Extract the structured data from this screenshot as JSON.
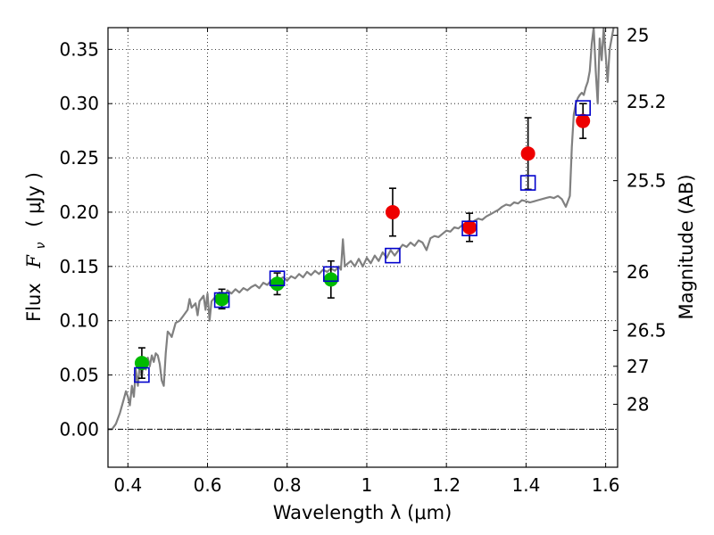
{
  "chart_data": {
    "type": "scatter",
    "xlabel": "Wavelength  λ (μm)",
    "ylabel_text": "Flux",
    "ylabel_symbol": "F",
    "ylabel_subscript": "ν",
    "ylabel_unit": "( μJy )",
    "y2label": "Magnitude (AB)",
    "xlim": [
      0.35,
      1.63
    ],
    "ylim": [
      -0.035,
      0.37
    ],
    "grid": true,
    "x_ticks": [
      0.4,
      0.6,
      0.8,
      1.0,
      1.2,
      1.4,
      1.6
    ],
    "x_tick_labels": [
      "0.4",
      "0.6",
      "0.8",
      "1",
      "1.2",
      "1.4",
      "1.6"
    ],
    "y_ticks": [
      0.0,
      0.05,
      0.1,
      0.15,
      0.2,
      0.25,
      0.3,
      0.35
    ],
    "y_tick_labels": [
      "0.00",
      "0.05",
      "0.10",
      "0.15",
      "0.20",
      "0.25",
      "0.30",
      "0.35"
    ],
    "y2_ticks": [
      {
        "label": "25",
        "flux": 0.363
      },
      {
        "label": "25.2",
        "flux": 0.302
      },
      {
        "label": "25.5",
        "flux": 0.229
      },
      {
        "label": "26",
        "flux": 0.145
      },
      {
        "label": "26.5",
        "flux": 0.091
      },
      {
        "label": "27",
        "flux": 0.058
      },
      {
        "label": "28",
        "flux": 0.023
      }
    ],
    "colors": {
      "spectrum": "#808080",
      "green_points": "#00bb00",
      "red_points": "#ee0000",
      "model_squares": "#0000cc",
      "error_bars": "#000000",
      "zero_line": "#000000"
    },
    "spectrum": [
      [
        0.35,
        0.0
      ],
      [
        0.36,
        0.0
      ],
      [
        0.37,
        0.005
      ],
      [
        0.38,
        0.015
      ],
      [
        0.39,
        0.028
      ],
      [
        0.395,
        0.035
      ],
      [
        0.4,
        0.03
      ],
      [
        0.405,
        0.022
      ],
      [
        0.41,
        0.04
      ],
      [
        0.415,
        0.03
      ],
      [
        0.42,
        0.055
      ],
      [
        0.425,
        0.04
      ],
      [
        0.43,
        0.06
      ],
      [
        0.435,
        0.048
      ],
      [
        0.44,
        0.064
      ],
      [
        0.445,
        0.055
      ],
      [
        0.45,
        0.066
      ],
      [
        0.455,
        0.058
      ],
      [
        0.46,
        0.068
      ],
      [
        0.465,
        0.062
      ],
      [
        0.47,
        0.07
      ],
      [
        0.475,
        0.068
      ],
      [
        0.48,
        0.06
      ],
      [
        0.485,
        0.045
      ],
      [
        0.49,
        0.04
      ],
      [
        0.495,
        0.07
      ],
      [
        0.5,
        0.09
      ],
      [
        0.505,
        0.088
      ],
      [
        0.51,
        0.085
      ],
      [
        0.52,
        0.098
      ],
      [
        0.53,
        0.1
      ],
      [
        0.54,
        0.105
      ],
      [
        0.55,
        0.11
      ],
      [
        0.555,
        0.12
      ],
      [
        0.56,
        0.112
      ],
      [
        0.57,
        0.116
      ],
      [
        0.575,
        0.105
      ],
      [
        0.58,
        0.118
      ],
      [
        0.59,
        0.123
      ],
      [
        0.595,
        0.11
      ],
      [
        0.6,
        0.125
      ],
      [
        0.605,
        0.1
      ],
      [
        0.61,
        0.118
      ],
      [
        0.62,
        0.122
      ],
      [
        0.63,
        0.126
      ],
      [
        0.64,
        0.118
      ],
      [
        0.65,
        0.128
      ],
      [
        0.66,
        0.125
      ],
      [
        0.67,
        0.129
      ],
      [
        0.68,
        0.126
      ],
      [
        0.69,
        0.13
      ],
      [
        0.7,
        0.128
      ],
      [
        0.71,
        0.131
      ],
      [
        0.72,
        0.133
      ],
      [
        0.73,
        0.13
      ],
      [
        0.74,
        0.135
      ],
      [
        0.75,
        0.133
      ],
      [
        0.76,
        0.137
      ],
      [
        0.77,
        0.135
      ],
      [
        0.78,
        0.138
      ],
      [
        0.79,
        0.14
      ],
      [
        0.8,
        0.137
      ],
      [
        0.81,
        0.141
      ],
      [
        0.82,
        0.139
      ],
      [
        0.83,
        0.143
      ],
      [
        0.84,
        0.14
      ],
      [
        0.85,
        0.145
      ],
      [
        0.86,
        0.142
      ],
      [
        0.87,
        0.146
      ],
      [
        0.88,
        0.143
      ],
      [
        0.89,
        0.147
      ],
      [
        0.9,
        0.145
      ],
      [
        0.91,
        0.148
      ],
      [
        0.92,
        0.146
      ],
      [
        0.93,
        0.15
      ],
      [
        0.935,
        0.147
      ],
      [
        0.94,
        0.175
      ],
      [
        0.945,
        0.15
      ],
      [
        0.95,
        0.152
      ],
      [
        0.96,
        0.155
      ],
      [
        0.97,
        0.15
      ],
      [
        0.98,
        0.157
      ],
      [
        0.99,
        0.15
      ],
      [
        1.0,
        0.158
      ],
      [
        1.01,
        0.153
      ],
      [
        1.02,
        0.16
      ],
      [
        1.03,
        0.155
      ],
      [
        1.04,
        0.163
      ],
      [
        1.05,
        0.158
      ],
      [
        1.06,
        0.165
      ],
      [
        1.07,
        0.16
      ],
      [
        1.08,
        0.165
      ],
      [
        1.09,
        0.17
      ],
      [
        1.1,
        0.168
      ],
      [
        1.11,
        0.172
      ],
      [
        1.12,
        0.169
      ],
      [
        1.13,
        0.174
      ],
      [
        1.14,
        0.172
      ],
      [
        1.15,
        0.165
      ],
      [
        1.16,
        0.176
      ],
      [
        1.17,
        0.178
      ],
      [
        1.18,
        0.177
      ],
      [
        1.19,
        0.18
      ],
      [
        1.2,
        0.183
      ],
      [
        1.21,
        0.182
      ],
      [
        1.22,
        0.186
      ],
      [
        1.23,
        0.185
      ],
      [
        1.24,
        0.188
      ],
      [
        1.25,
        0.19
      ],
      [
        1.26,
        0.189
      ],
      [
        1.27,
        0.192
      ],
      [
        1.28,
        0.194
      ],
      [
        1.29,
        0.193
      ],
      [
        1.3,
        0.196
      ],
      [
        1.31,
        0.198
      ],
      [
        1.32,
        0.2
      ],
      [
        1.33,
        0.202
      ],
      [
        1.34,
        0.205
      ],
      [
        1.35,
        0.207
      ],
      [
        1.36,
        0.206
      ],
      [
        1.37,
        0.209
      ],
      [
        1.38,
        0.208
      ],
      [
        1.39,
        0.211
      ],
      [
        1.4,
        0.21
      ],
      [
        1.41,
        0.209
      ],
      [
        1.42,
        0.21
      ],
      [
        1.43,
        0.211
      ],
      [
        1.44,
        0.212
      ],
      [
        1.45,
        0.213
      ],
      [
        1.46,
        0.214
      ],
      [
        1.47,
        0.213
      ],
      [
        1.48,
        0.215
      ],
      [
        1.49,
        0.212
      ],
      [
        1.5,
        0.205
      ],
      [
        1.51,
        0.215
      ],
      [
        1.515,
        0.26
      ],
      [
        1.52,
        0.29
      ],
      [
        1.525,
        0.3
      ],
      [
        1.53,
        0.305
      ],
      [
        1.535,
        0.308
      ],
      [
        1.54,
        0.31
      ],
      [
        1.545,
        0.308
      ],
      [
        1.55,
        0.315
      ],
      [
        1.555,
        0.32
      ],
      [
        1.56,
        0.33
      ],
      [
        1.565,
        0.355
      ],
      [
        1.57,
        0.37
      ],
      [
        1.575,
        0.33
      ],
      [
        1.58,
        0.3
      ],
      [
        1.585,
        0.36
      ],
      [
        1.59,
        0.34
      ],
      [
        1.595,
        0.37
      ],
      [
        1.6,
        0.345
      ],
      [
        1.605,
        0.32
      ],
      [
        1.61,
        0.35
      ],
      [
        1.62,
        0.37
      ]
    ],
    "measured_points": [
      {
        "color": "green",
        "x": 0.435,
        "y": 0.061,
        "err": 0.014
      },
      {
        "color": "green",
        "x": 0.636,
        "y": 0.12,
        "err": 0.009
      },
      {
        "color": "green",
        "x": 0.775,
        "y": 0.134,
        "err": 0.01
      },
      {
        "color": "green",
        "x": 0.91,
        "y": 0.138,
        "err": 0.017
      },
      {
        "color": "red",
        "x": 1.065,
        "y": 0.2,
        "err": 0.022
      },
      {
        "color": "red",
        "x": 1.258,
        "y": 0.186,
        "err": 0.013
      },
      {
        "color": "red",
        "x": 1.405,
        "y": 0.254,
        "err": 0.033
      },
      {
        "color": "red",
        "x": 1.543,
        "y": 0.284,
        "err": 0.016
      }
    ],
    "model_squares": [
      {
        "x": 0.435,
        "y": 0.05
      },
      {
        "x": 0.636,
        "y": 0.119
      },
      {
        "x": 0.775,
        "y": 0.139
      },
      {
        "x": 0.91,
        "y": 0.143
      },
      {
        "x": 1.065,
        "y": 0.16
      },
      {
        "x": 1.258,
        "y": 0.185
      },
      {
        "x": 1.405,
        "y": 0.227
      },
      {
        "x": 1.543,
        "y": 0.296
      }
    ]
  }
}
